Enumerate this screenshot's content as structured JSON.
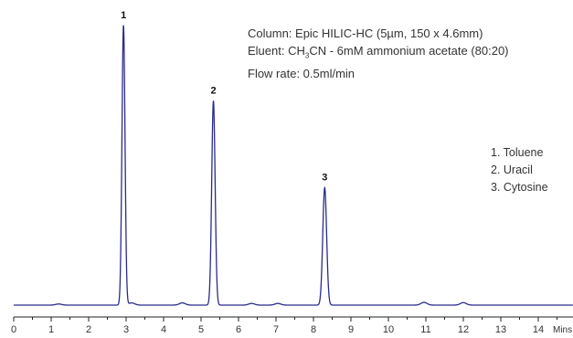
{
  "info": {
    "column": "Column: Epic HILIC-HC (5µm, 150 x 4.6mm)",
    "eluent_prefix": "Eluent: CH",
    "eluent_sub": "3",
    "eluent_suffix": "CN - 6mM ammonium acetate (80:20)",
    "flow": "Flow rate: 0.5ml/min"
  },
  "legend": {
    "items": [
      "1. Toluene",
      "2. Uracil",
      "3. Cytosine"
    ]
  },
  "chart_data": {
    "type": "line",
    "title": "",
    "xlabel": "Mins",
    "ylabel": "",
    "xlim": [
      0,
      14.7
    ],
    "ylim": [
      0,
      1
    ],
    "x_ticks": [
      0,
      1,
      2,
      3,
      4,
      5,
      6,
      7,
      8,
      9,
      10,
      11,
      12,
      13,
      14
    ],
    "line_color": "#2b2b8c",
    "peaks": [
      {
        "label": "1",
        "time": 2.93,
        "height": 1.0
      },
      {
        "label": "2",
        "time": 5.33,
        "height": 0.73
      },
      {
        "label": "3",
        "time": 8.3,
        "height": 0.42
      }
    ],
    "minor_peaks": [
      {
        "time": 1.2,
        "height": 0.004
      },
      {
        "time": 3.15,
        "height": 0.008
      },
      {
        "time": 4.5,
        "height": 0.008
      },
      {
        "time": 6.35,
        "height": 0.006
      },
      {
        "time": 7.05,
        "height": 0.006
      },
      {
        "time": 10.95,
        "height": 0.01
      },
      {
        "time": 12.0,
        "height": 0.009
      }
    ]
  }
}
